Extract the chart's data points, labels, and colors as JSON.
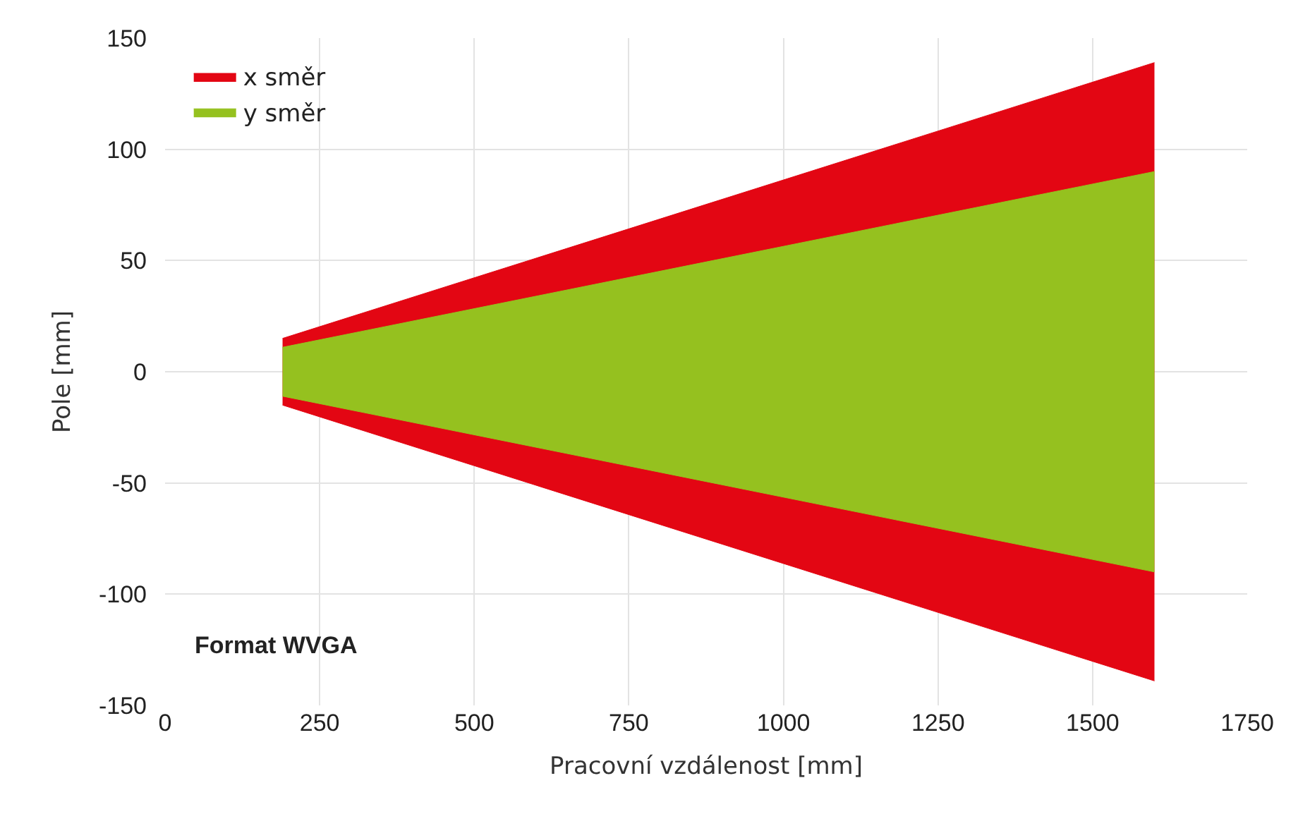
{
  "chart_data": {
    "type": "area",
    "xlabel": "Pracovní vzdálenost [mm]",
    "ylabel": "Pole [mm]",
    "x": [
      190,
      1600
    ],
    "series": [
      {
        "name": "x směr",
        "color": "#e30613",
        "values": [
          15,
          139
        ]
      },
      {
        "color": "#e30613",
        "values": [
          -15,
          -139
        ]
      },
      {
        "name": "y směr",
        "color": "#95c11f",
        "values": [
          11,
          90
        ]
      },
      {
        "color": "#95c11f",
        "values": [
          -11,
          -90
        ]
      }
    ],
    "xlim": [
      0,
      1750
    ],
    "xticks": [
      0,
      250,
      500,
      750,
      1000,
      1250,
      1500,
      1750
    ],
    "ylim": [
      -150,
      150
    ],
    "yticks": [
      -150,
      -100,
      -50,
      0,
      50,
      100,
      150
    ],
    "grid": true,
    "legend": "top left",
    "annotations": [
      "Format WVGA"
    ]
  }
}
